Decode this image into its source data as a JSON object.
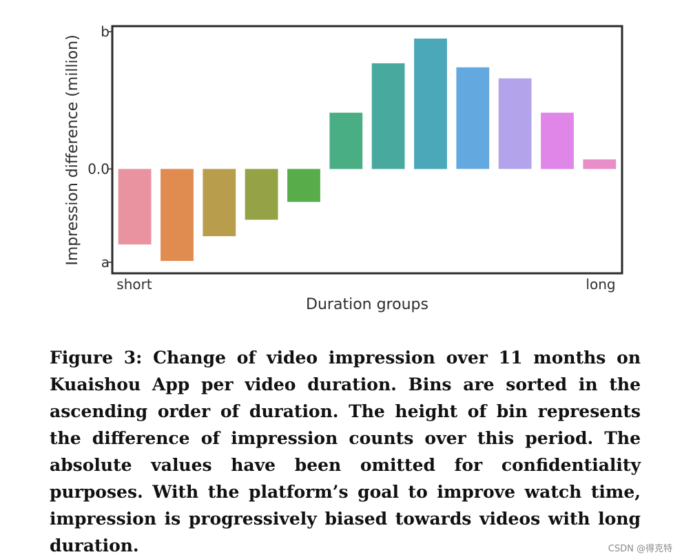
{
  "chart_data": {
    "type": "bar",
    "xlabel": "Duration groups",
    "ylabel": "Impression difference (million)",
    "x_tick_labels": [
      "short",
      "long"
    ],
    "y_tick_labels": [
      "b",
      "0.0",
      "a"
    ],
    "y_tick_values": [
      1.0,
      0.0,
      -0.68
    ],
    "ylim": [
      -0.75,
      1.03
    ],
    "values": [
      -0.55,
      -0.67,
      -0.49,
      -0.37,
      -0.24,
      0.41,
      0.77,
      0.95,
      0.74,
      0.66,
      0.41,
      0.07
    ],
    "colors": [
      "#e8939f",
      "#e08b4f",
      "#b89e4c",
      "#96a246",
      "#58ad4a",
      "#4aae85",
      "#48aa9e",
      "#4aa8b8",
      "#63a8de",
      "#b2a3ea",
      "#df86e8",
      "#e88fc9"
    ]
  },
  "caption": "Figure 3: Change of video impression over 11 months on Kuaishou App per video duration. Bins are sorted in the ascending order of duration. The height of bin represents the difference of impression counts over this period. The absolute values have been omitted for confidentiality purposes. With the platform’s goal to improve watch time, impression is progressively biased towards videos with long duration.",
  "watermark": "CSDN @得克特"
}
